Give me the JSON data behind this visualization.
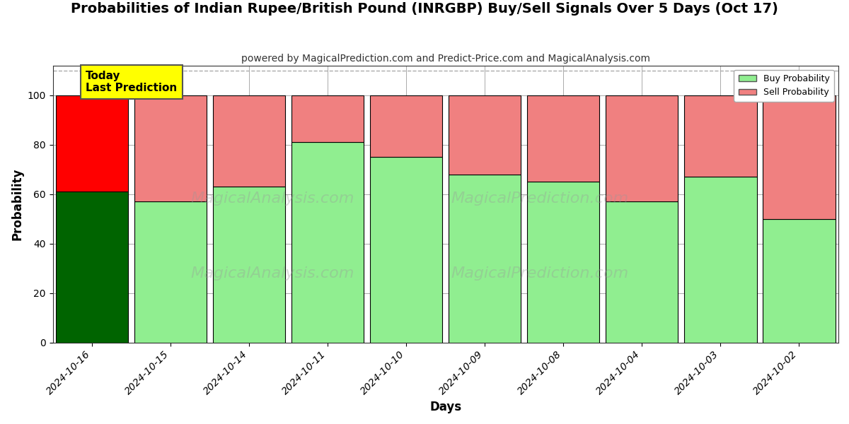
{
  "title": "Probabilities of Indian Rupee/British Pound (INRGBP) Buy/Sell Signals Over 5 Days (Oct 17)",
  "subtitle": "powered by MagicalPrediction.com and Predict-Price.com and MagicalAnalysis.com",
  "xlabel": "Days",
  "ylabel": "Probability",
  "categories": [
    "2024-10-16",
    "2024-10-15",
    "2024-10-14",
    "2024-10-11",
    "2024-10-10",
    "2024-10-09",
    "2024-10-08",
    "2024-10-04",
    "2024-10-03",
    "2024-10-02"
  ],
  "buy_values": [
    61,
    57,
    63,
    81,
    75,
    68,
    65,
    57,
    67,
    50
  ],
  "sell_values": [
    39,
    43,
    37,
    19,
    25,
    32,
    35,
    43,
    33,
    50
  ],
  "today_bar_index": 0,
  "buy_color_today": "#006400",
  "sell_color_today": "#FF0000",
  "buy_color_normal": "#90EE90",
  "sell_color_normal": "#F08080",
  "today_label": "Today\nLast Prediction",
  "legend_buy": "Buy Probability",
  "legend_sell": "Sell Probability",
  "ylim": [
    0,
    112
  ],
  "yticks": [
    0,
    20,
    40,
    60,
    80,
    100
  ],
  "dashed_line_y": 110,
  "bar_edge_color": "#000000",
  "bar_linewidth": 0.8,
  "background_color": "#ffffff",
  "plot_bg_color": "#ffffff",
  "grid_color": "#aaaaaa",
  "title_fontsize": 14,
  "subtitle_fontsize": 10,
  "label_fontsize": 12,
  "tick_fontsize": 10
}
